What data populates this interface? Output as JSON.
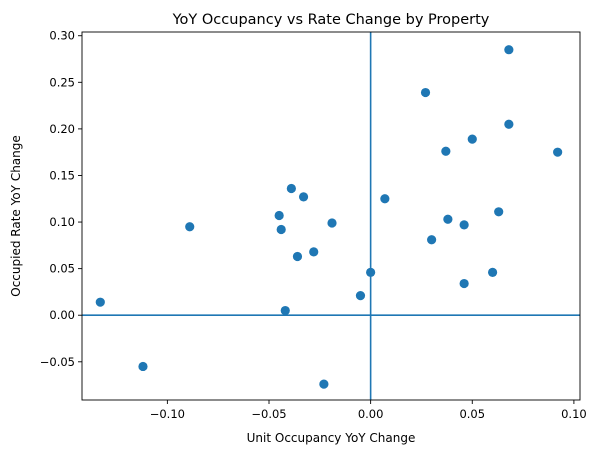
{
  "chart_data": {
    "type": "scatter",
    "title": "YoY Occupancy vs Rate Change by Property",
    "xlabel": "Unit Occupancy YoY Change",
    "ylabel": "Occupied Rate YoY Change",
    "xlim": [
      -0.142,
      0.103
    ],
    "ylim": [
      -0.091,
      0.304
    ],
    "xticks": [
      -0.1,
      -0.05,
      0.0,
      0.05,
      0.1
    ],
    "xtick_labels": [
      "−0.10",
      "−0.05",
      "0.00",
      "0.05",
      "0.10"
    ],
    "yticks": [
      -0.05,
      0.0,
      0.05,
      0.1,
      0.15,
      0.2,
      0.25,
      0.3
    ],
    "ytick_labels": [
      "−0.05",
      "0.00",
      "0.05",
      "0.10",
      "0.15",
      "0.20",
      "0.25",
      "0.30"
    ],
    "reference_lines": {
      "x": 0,
      "y": 0
    },
    "grid": false,
    "color": "#1f77b4",
    "points": [
      {
        "x": -0.133,
        "y": 0.014
      },
      {
        "x": -0.112,
        "y": -0.055
      },
      {
        "x": -0.089,
        "y": 0.095
      },
      {
        "x": -0.045,
        "y": 0.107
      },
      {
        "x": -0.044,
        "y": 0.092
      },
      {
        "x": -0.042,
        "y": 0.005
      },
      {
        "x": -0.039,
        "y": 0.136
      },
      {
        "x": -0.036,
        "y": 0.063
      },
      {
        "x": -0.033,
        "y": 0.127
      },
      {
        "x": -0.028,
        "y": 0.068
      },
      {
        "x": -0.023,
        "y": -0.074
      },
      {
        "x": -0.019,
        "y": 0.099
      },
      {
        "x": -0.005,
        "y": 0.021
      },
      {
        "x": 0.0,
        "y": 0.046
      },
      {
        "x": 0.007,
        "y": 0.125
      },
      {
        "x": 0.027,
        "y": 0.239
      },
      {
        "x": 0.03,
        "y": 0.081
      },
      {
        "x": 0.037,
        "y": 0.176
      },
      {
        "x": 0.038,
        "y": 0.103
      },
      {
        "x": 0.046,
        "y": 0.097
      },
      {
        "x": 0.046,
        "y": 0.034
      },
      {
        "x": 0.05,
        "y": 0.189
      },
      {
        "x": 0.06,
        "y": 0.046
      },
      {
        "x": 0.063,
        "y": 0.111
      },
      {
        "x": 0.068,
        "y": 0.205
      },
      {
        "x": 0.068,
        "y": 0.285
      },
      {
        "x": 0.092,
        "y": 0.175
      }
    ]
  }
}
